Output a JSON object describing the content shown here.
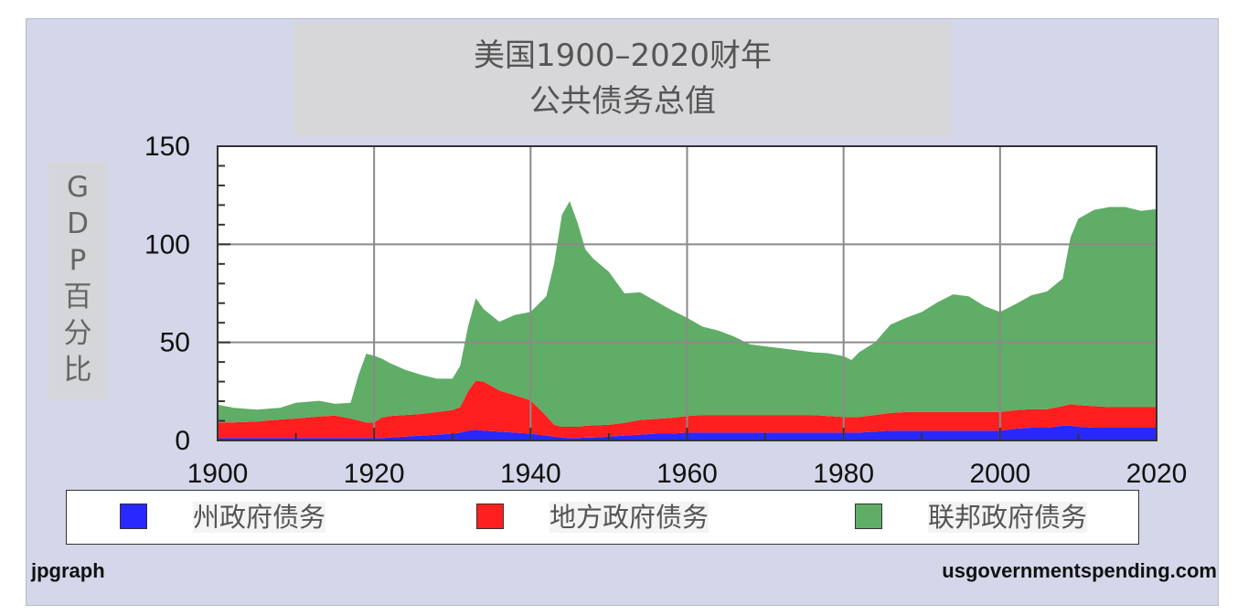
{
  "chart_data": {
    "type": "area",
    "title_line1": "美国1900–2020财年",
    "title_line2": "公共债务总值",
    "ylabel": "GDP百分比",
    "xlim": [
      1900,
      2020
    ],
    "ylim": [
      0,
      150
    ],
    "x_ticks": [
      1900,
      1920,
      1940,
      1960,
      1980,
      2000,
      2020
    ],
    "y_ticks": [
      0,
      50,
      100,
      150
    ],
    "grid": true,
    "stacked": true,
    "legend_position": "bottom",
    "x": [
      1900,
      1902,
      1905,
      1908,
      1910,
      1913,
      1915,
      1917,
      1918,
      1919,
      1920,
      1921,
      1922,
      1924,
      1926,
      1928,
      1930,
      1931,
      1932,
      1933,
      1934,
      1936,
      1938,
      1940,
      1942,
      1943,
      1944,
      1945,
      1946,
      1947,
      1948,
      1950,
      1952,
      1954,
      1956,
      1958,
      1960,
      1962,
      1964,
      1966,
      1968,
      1970,
      1972,
      1974,
      1976,
      1978,
      1980,
      1981,
      1982,
      1984,
      1986,
      1988,
      1990,
      1992,
      1994,
      1996,
      1998,
      2000,
      2002,
      2004,
      2006,
      2008,
      2009,
      2010,
      2012,
      2014,
      2016,
      2018,
      2020
    ],
    "series": [
      {
        "name": "州政府债务",
        "color": "#2929ff",
        "values": [
          1.2,
          1.2,
          1.2,
          1.2,
          1.2,
          1.2,
          1.2,
          1.2,
          1.2,
          1.2,
          1.2,
          1.2,
          1.5,
          2,
          2.5,
          3,
          3.5,
          4,
          5,
          5.5,
          5,
          4.5,
          4,
          3.5,
          2.5,
          2,
          1.5,
          1.2,
          1.2,
          1.5,
          1.5,
          2,
          2.5,
          3,
          3.5,
          3.5,
          4,
          4,
          4,
          4,
          4,
          4,
          4,
          4,
          4,
          4,
          4,
          4,
          4,
          4.5,
          5,
          5,
          5,
          5,
          5,
          5,
          5,
          5,
          6,
          6.5,
          6.5,
          7.5,
          7.5,
          7,
          6.5,
          6.5,
          6.5,
          6.5,
          6.5
        ]
      },
      {
        "name": "地方政府债务",
        "color": "#ff1f1f",
        "values": [
          8,
          8,
          8.5,
          9.5,
          10,
          11,
          11.5,
          10,
          9,
          8,
          8,
          10.5,
          11,
          11,
          11,
          11.5,
          12,
          13,
          20,
          25,
          25,
          21,
          19,
          17,
          10,
          6,
          5.5,
          5.8,
          5.8,
          6,
          6.2,
          6,
          6.5,
          7.5,
          7.5,
          8,
          8.5,
          9,
          9,
          9,
          9,
          9,
          9,
          9,
          9,
          8.5,
          8,
          8,
          8,
          8.5,
          9,
          9.5,
          9.5,
          9.5,
          9.5,
          9.5,
          9.5,
          9.5,
          9.5,
          9.5,
          9.5,
          10,
          11,
          11,
          11,
          10.5,
          10.5,
          10.5,
          10.5
        ]
      },
      {
        "name": "联邦政府债务",
        "color": "#5fad66",
        "values": [
          9,
          7.5,
          6,
          6,
          8,
          8,
          6,
          8,
          23,
          35,
          34,
          30,
          27,
          23,
          20,
          17,
          16,
          21,
          33,
          42,
          37,
          35,
          41,
          45,
          61,
          82,
          108,
          115,
          104,
          90,
          85,
          78,
          66,
          65,
          60,
          55,
          50,
          45,
          43,
          40,
          36,
          35,
          34,
          33,
          32,
          32,
          31,
          29,
          33,
          37,
          45,
          48,
          51,
          56,
          60,
          59,
          54,
          51,
          54,
          58,
          60,
          65,
          85,
          95,
          100,
          102,
          102,
          100,
          101
        ]
      }
    ]
  },
  "footer": {
    "left": "jpgraph",
    "right": "usgovernmentspending.com"
  }
}
